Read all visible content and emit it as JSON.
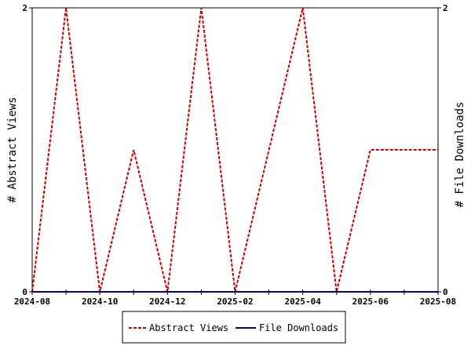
{
  "chart_data": {
    "type": "line",
    "x": [
      "2024-08",
      "2024-09",
      "2024-10",
      "2024-11",
      "2024-12",
      "2025-01",
      "2025-02",
      "2025-03",
      "2025-04",
      "2025-05",
      "2025-06",
      "2025-07",
      "2025-08"
    ],
    "series": [
      {
        "name": "Abstract Views",
        "color": "#cc0000",
        "style": "dashed",
        "values": [
          0,
          2,
          0,
          1,
          0,
          2,
          0,
          1,
          2,
          0,
          1,
          1,
          1
        ]
      },
      {
        "name": "File Downloads",
        "color": "#000099",
        "style": "solid",
        "values": [
          0,
          0,
          0,
          0,
          0,
          0,
          0,
          0,
          0,
          0,
          0,
          0,
          0
        ]
      }
    ],
    "x_tick_labels": [
      "2024-08",
      "2024-10",
      "2024-12",
      "2025-02",
      "2025-04",
      "2025-06",
      "2025-08"
    ],
    "ylabel_left": "# Abstract Views",
    "ylabel_right": "# File Downloads",
    "y_tick_labels_left": [
      "0",
      "2"
    ],
    "y_tick_labels_right": [
      "0",
      "2"
    ],
    "ylim": [
      0,
      2
    ],
    "grid": false,
    "legend_position": "bottom"
  }
}
